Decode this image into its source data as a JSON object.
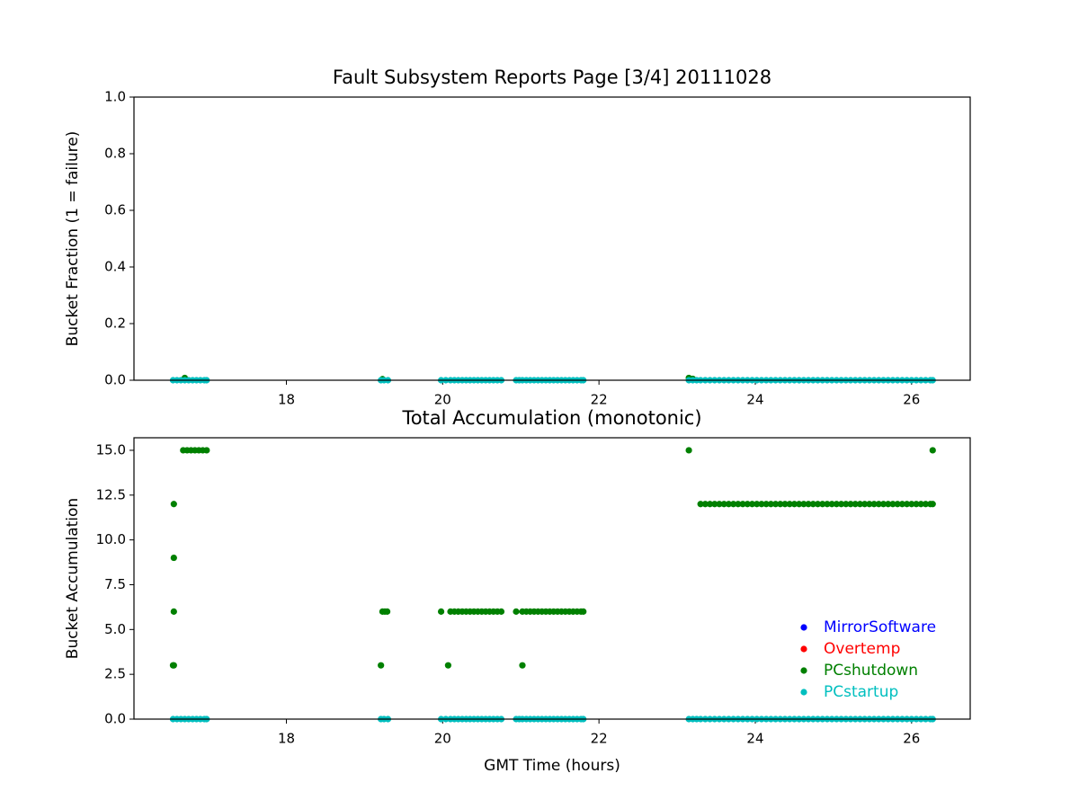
{
  "chart_data": [
    {
      "type": "scatter",
      "title": "Fault Subsystem Reports Page [3/4] 20111028",
      "ylabel": "Bucket Fraction (1 = failure)",
      "xlim": [
        16.05,
        26.75
      ],
      "ylim": [
        0,
        1
      ],
      "xticks": [
        18,
        20,
        22,
        24,
        26
      ],
      "yticks": [
        {
          "value": 0,
          "label": "0.0"
        },
        0.2,
        0.4,
        0.6,
        0.8,
        {
          "value": 1,
          "label": "1.0"
        }
      ],
      "series": [
        {
          "name": "PCshutdown",
          "color": "#008000",
          "x": [
            16.7,
            19.23,
            23.15,
            23.2
          ],
          "values": [
            0.008,
            0.004,
            0.008,
            0.005
          ]
        },
        {
          "name": "PCstartup",
          "color": "#00bfbf",
          "x": [
            16.55,
            16.6,
            16.65,
            16.7,
            16.75,
            16.8,
            16.85,
            16.9,
            16.95,
            16.98,
            19.21,
            19.25,
            19.3,
            19.98,
            20.04,
            20.1,
            20.15,
            20.2,
            20.25,
            20.3,
            20.35,
            20.4,
            20.45,
            20.5,
            20.55,
            20.6,
            20.65,
            20.7,
            20.75,
            20.94,
            20.98,
            21.02,
            21.07,
            21.12,
            21.17,
            21.22,
            21.27,
            21.32,
            21.37,
            21.42,
            21.47,
            21.52,
            21.57,
            21.62,
            21.67,
            21.72,
            21.77,
            21.8,
            23.15,
            23.2,
            23.25,
            23.3,
            23.36,
            23.42,
            23.48,
            23.54,
            23.6,
            23.66,
            23.72,
            23.78,
            23.84,
            23.9,
            23.96,
            24.02,
            24.08,
            24.14,
            24.2,
            24.26,
            24.32,
            24.38,
            24.44,
            24.5,
            24.56,
            24.62,
            24.68,
            24.74,
            24.8,
            24.86,
            24.92,
            24.98,
            25.04,
            25.1,
            25.16,
            25.22,
            25.28,
            25.34,
            25.4,
            25.46,
            25.52,
            25.58,
            25.64,
            25.7,
            25.76,
            25.82,
            25.88,
            25.94,
            26,
            26.06,
            26.12,
            26.18,
            26.24,
            26.27
          ],
          "values": [
            0,
            0,
            0,
            0,
            0,
            0,
            0,
            0,
            0,
            0,
            0,
            0,
            0,
            0,
            0,
            0,
            0,
            0,
            0,
            0,
            0,
            0,
            0,
            0,
            0,
            0,
            0,
            0,
            0,
            0,
            0,
            0,
            0,
            0,
            0,
            0,
            0,
            0,
            0,
            0,
            0,
            0,
            0,
            0,
            0,
            0,
            0,
            0,
            0,
            0,
            0,
            0,
            0,
            0,
            0,
            0,
            0,
            0,
            0,
            0,
            0,
            0,
            0,
            0,
            0,
            0,
            0,
            0,
            0,
            0,
            0,
            0,
            0,
            0,
            0,
            0,
            0,
            0,
            0,
            0,
            0,
            0,
            0,
            0,
            0,
            0,
            0,
            0,
            0,
            0,
            0,
            0,
            0,
            0,
            0,
            0,
            0,
            0,
            0,
            0,
            0,
            0
          ]
        }
      ]
    },
    {
      "type": "scatter",
      "title": "Total Accumulation (monotonic)",
      "ylabel": "Bucket Accumulation",
      "xlabel": "GMT Time (hours)",
      "xlim": [
        16.05,
        26.75
      ],
      "ylim": [
        0,
        15.7
      ],
      "xticks": [
        18,
        20,
        22,
        24,
        26
      ],
      "yticks": [
        {
          "value": 0,
          "label": "0.0"
        },
        2.5,
        {
          "value": 5,
          "label": "5.0"
        },
        7.5,
        {
          "value": 10,
          "label": "10.0"
        },
        12.5,
        {
          "value": 15,
          "label": "15.0"
        }
      ],
      "legend": "lower right",
      "series": [
        {
          "name": "MirrorSoftware",
          "color": "#0000ff",
          "x": [],
          "values": []
        },
        {
          "name": "Overtemp",
          "color": "#ff0000",
          "x": [],
          "values": []
        },
        {
          "name": "PCshutdown",
          "color": "#008000",
          "x": [
            16.55,
            16.56,
            16.56,
            16.56,
            16.56,
            16.68,
            16.73,
            16.78,
            16.83,
            16.88,
            16.93,
            16.98,
            19.21,
            19.23,
            19.26,
            19.29,
            19.98,
            20.07,
            20.1,
            20.15,
            20.2,
            20.25,
            20.3,
            20.35,
            20.4,
            20.45,
            20.5,
            20.55,
            20.6,
            20.65,
            20.7,
            20.75,
            20.94,
            21.02,
            21.02,
            21.07,
            21.12,
            21.17,
            21.22,
            21.27,
            21.32,
            21.37,
            21.42,
            21.47,
            21.52,
            21.57,
            21.62,
            21.67,
            21.72,
            21.77,
            21.8,
            23.15,
            23.3,
            23.36,
            23.42,
            23.48,
            23.54,
            23.6,
            23.66,
            23.72,
            23.78,
            23.84,
            23.9,
            23.96,
            24.02,
            24.08,
            24.14,
            24.2,
            24.26,
            24.32,
            24.38,
            24.44,
            24.5,
            24.56,
            24.62,
            24.68,
            24.74,
            24.8,
            24.86,
            24.92,
            24.98,
            25.04,
            25.1,
            25.16,
            25.22,
            25.28,
            25.34,
            25.4,
            25.46,
            25.52,
            25.58,
            25.64,
            25.7,
            25.76,
            25.82,
            25.88,
            25.94,
            26,
            26.06,
            26.12,
            26.18,
            26.24,
            26.27,
            26.27
          ],
          "values": [
            3,
            3,
            6,
            9,
            12,
            15,
            15,
            15,
            15,
            15,
            15,
            15,
            3,
            6,
            6,
            6,
            6,
            3,
            6,
            6,
            6,
            6,
            6,
            6,
            6,
            6,
            6,
            6,
            6,
            6,
            6,
            6,
            6,
            3,
            6,
            6,
            6,
            6,
            6,
            6,
            6,
            6,
            6,
            6,
            6,
            6,
            6,
            6,
            6,
            6,
            6,
            15,
            12,
            12,
            12,
            12,
            12,
            12,
            12,
            12,
            12,
            12,
            12,
            12,
            12,
            12,
            12,
            12,
            12,
            12,
            12,
            12,
            12,
            12,
            12,
            12,
            12,
            12,
            12,
            12,
            12,
            12,
            12,
            12,
            12,
            12,
            12,
            12,
            12,
            12,
            12,
            12,
            12,
            12,
            12,
            12,
            12,
            12,
            12,
            12,
            12,
            12,
            12,
            15
          ]
        },
        {
          "name": "PCstartup",
          "color": "#00bfbf",
          "x": [
            16.55,
            16.6,
            16.65,
            16.7,
            16.75,
            16.8,
            16.85,
            16.9,
            16.95,
            16.98,
            19.21,
            19.25,
            19.3,
            19.98,
            20.04,
            20.1,
            20.15,
            20.2,
            20.25,
            20.3,
            20.35,
            20.4,
            20.45,
            20.5,
            20.55,
            20.6,
            20.65,
            20.7,
            20.75,
            20.94,
            20.98,
            21.02,
            21.07,
            21.12,
            21.17,
            21.22,
            21.27,
            21.32,
            21.37,
            21.42,
            21.47,
            21.52,
            21.57,
            21.62,
            21.67,
            21.72,
            21.77,
            21.8,
            23.15,
            23.2,
            23.25,
            23.3,
            23.36,
            23.42,
            23.48,
            23.54,
            23.6,
            23.66,
            23.72,
            23.78,
            23.84,
            23.9,
            23.96,
            24.02,
            24.08,
            24.14,
            24.2,
            24.26,
            24.32,
            24.38,
            24.44,
            24.5,
            24.56,
            24.62,
            24.68,
            24.74,
            24.8,
            24.86,
            24.92,
            24.98,
            25.04,
            25.1,
            25.16,
            25.22,
            25.28,
            25.34,
            25.4,
            25.46,
            25.52,
            25.58,
            25.64,
            25.7,
            25.76,
            25.82,
            25.88,
            25.94,
            26,
            26.06,
            26.12,
            26.18,
            26.24,
            26.27
          ],
          "values": [
            0,
            0,
            0,
            0,
            0,
            0,
            0,
            0,
            0,
            0,
            0,
            0,
            0,
            0,
            0,
            0,
            0,
            0,
            0,
            0,
            0,
            0,
            0,
            0,
            0,
            0,
            0,
            0,
            0,
            0,
            0,
            0,
            0,
            0,
            0,
            0,
            0,
            0,
            0,
            0,
            0,
            0,
            0,
            0,
            0,
            0,
            0,
            0,
            0,
            0,
            0,
            0,
            0,
            0,
            0,
            0,
            0,
            0,
            0,
            0,
            0,
            0,
            0,
            0,
            0,
            0,
            0,
            0,
            0,
            0,
            0,
            0,
            0,
            0,
            0,
            0,
            0,
            0,
            0,
            0,
            0,
            0,
            0,
            0,
            0,
            0,
            0,
            0,
            0,
            0,
            0,
            0,
            0,
            0,
            0,
            0,
            0,
            0,
            0,
            0,
            0,
            0
          ]
        }
      ]
    }
  ]
}
